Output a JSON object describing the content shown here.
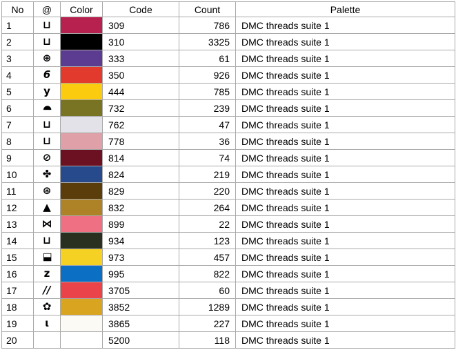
{
  "window": {
    "background": "#ffffff",
    "grid_color": "#a8a8a8",
    "text_color": "#000000"
  },
  "table": {
    "headers": {
      "no": "No",
      "symbol": "@",
      "color": "Color",
      "code": "Code",
      "count": "Count",
      "palette": "Palette"
    },
    "rows": [
      {
        "no": "1",
        "symbol": {
          "glyph": "⊔",
          "name": "square-cup-icon"
        },
        "color": "#B72150",
        "code": "309",
        "count": "786",
        "palette": "DMC threads suite 1"
      },
      {
        "no": "2",
        "symbol": {
          "glyph": "⊔",
          "name": "square-cup-icon"
        },
        "color": "#000000",
        "code": "310",
        "count": "3325",
        "palette": "DMC threads suite 1"
      },
      {
        "no": "3",
        "symbol": {
          "glyph": "⊕",
          "name": "circled-plus-icon"
        },
        "color": "#5C3C90",
        "code": "333",
        "count": "61",
        "palette": "DMC threads suite 1"
      },
      {
        "no": "4",
        "symbol": {
          "glyph": "6",
          "name": "digit-six-icon",
          "italic": true
        },
        "color": "#E23B2E",
        "code": "350",
        "count": "926",
        "palette": "DMC threads suite 1"
      },
      {
        "no": "5",
        "symbol": {
          "glyph": "y",
          "name": "letter-y-icon"
        },
        "color": "#FBCB0F",
        "code": "444",
        "count": "785",
        "palette": "DMC threads suite 1"
      },
      {
        "no": "6",
        "symbol": {
          "glyph": "◗",
          "name": "half-circle-icon",
          "rotate": -90
        },
        "color": "#787423",
        "code": "732",
        "count": "239",
        "palette": "DMC threads suite 1"
      },
      {
        "no": "7",
        "symbol": {
          "glyph": "⊔",
          "name": "square-cup-icon"
        },
        "color": "#E3E2E8",
        "code": "762",
        "count": "47",
        "palette": "DMC threads suite 1"
      },
      {
        "no": "8",
        "symbol": {
          "glyph": "⊔",
          "name": "square-cup-icon"
        },
        "color": "#DFA0A7",
        "code": "778",
        "count": "36",
        "palette": "DMC threads suite 1"
      },
      {
        "no": "9",
        "symbol": {
          "glyph": "⊘",
          "name": "circled-slash-icon"
        },
        "color": "#6B1122",
        "code": "814",
        "count": "74",
        "palette": "DMC threads suite 1"
      },
      {
        "no": "10",
        "symbol": {
          "glyph": "✤",
          "name": "quatrefoil-clover-icon"
        },
        "color": "#274A8C",
        "code": "824",
        "count": "219",
        "palette": "DMC threads suite 1"
      },
      {
        "no": "11",
        "symbol": {
          "glyph": "⊛",
          "name": "circled-flower-icon"
        },
        "color": "#5B3D0B",
        "code": "829",
        "count": "220",
        "palette": "DMC threads suite 1"
      },
      {
        "no": "12",
        "symbol": {
          "glyph": "▲",
          "name": "triangle-icon"
        },
        "color": "#AE8328",
        "code": "832",
        "count": "264",
        "palette": "DMC threads suite 1"
      },
      {
        "no": "13",
        "symbol": {
          "glyph": "⋈",
          "name": "bowtie-icon"
        },
        "color": "#EF7083",
        "code": "899",
        "count": "22",
        "palette": "DMC threads suite 1"
      },
      {
        "no": "14",
        "symbol": {
          "glyph": "⊔",
          "name": "square-cup-icon"
        },
        "color": "#2A301F",
        "code": "934",
        "count": "123",
        "palette": "DMC threads suite 1"
      },
      {
        "no": "15",
        "symbol": {
          "glyph": "◧",
          "name": "half-filled-square-icon",
          "rotate": -90
        },
        "color": "#F4D122",
        "code": "973",
        "count": "457",
        "palette": "DMC threads suite 1"
      },
      {
        "no": "16",
        "symbol": {
          "glyph": "z",
          "name": "letter-z-icon"
        },
        "color": "#0B6FC4",
        "code": "995",
        "count": "822",
        "palette": "DMC threads suite 1"
      },
      {
        "no": "17",
        "symbol": {
          "glyph": "//",
          "name": "double-slash-icon",
          "italic": true
        },
        "color": "#EA434A",
        "code": "3705",
        "count": "60",
        "palette": "DMC threads suite 1"
      },
      {
        "no": "18",
        "symbol": {
          "glyph": "✿",
          "name": "black-florette-icon"
        },
        "color": "#D9A420",
        "code": "3852",
        "count": "1289",
        "palette": "DMC threads suite 1"
      },
      {
        "no": "19",
        "symbol": {
          "glyph": "ι",
          "name": "iota-icon"
        },
        "color": "#FCFAF5",
        "code": "3865",
        "count": "227",
        "palette": "DMC threads suite 1"
      },
      {
        "no": "20",
        "symbol": {
          "glyph": "",
          "name": "no-symbol"
        },
        "color": "#FFFFFF",
        "code": "5200",
        "count": "118",
        "palette": "DMC threads suite 1"
      }
    ]
  }
}
